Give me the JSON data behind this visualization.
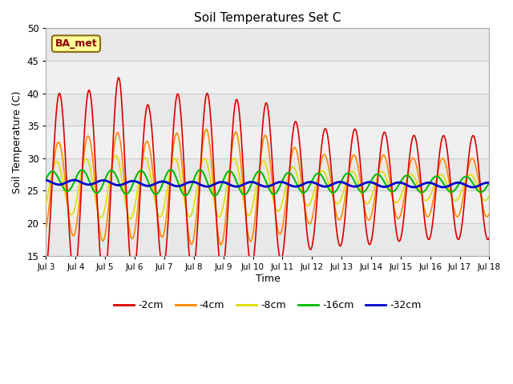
{
  "title": "Soil Temperatures Set C",
  "xlabel": "Time",
  "ylabel": "Soil Temperature (C)",
  "ylim": [
    15,
    50
  ],
  "background_color": "#ffffff",
  "plot_bg_color": "#ffffff",
  "annotation_text": "BA_met",
  "annotation_bg": "#ffff99",
  "annotation_border": "#8B6914",
  "x_tick_labels": [
    "Jul 3",
    "Jul 4",
    "Jul 5",
    "Jul 6",
    "Jul 7",
    "Jul 8",
    "Jul 9",
    "Jul 10",
    "Jul 11",
    "Jul 12",
    "Jul 13",
    "Jul 14",
    "Jul 15",
    "Jul 16",
    "Jul 17",
    "Jul 18"
  ],
  "legend_order": [
    "-2cm",
    "-4cm",
    "-8cm",
    "-16cm",
    "-32cm"
  ],
  "legend_colors": [
    "#dd0000",
    "#ff8800",
    "#dddd00",
    "#00bb00",
    "#0000cc"
  ],
  "band_colors": [
    "#e8e8e8",
    "#f5f5f5"
  ],
  "grid_color": "#cccccc"
}
